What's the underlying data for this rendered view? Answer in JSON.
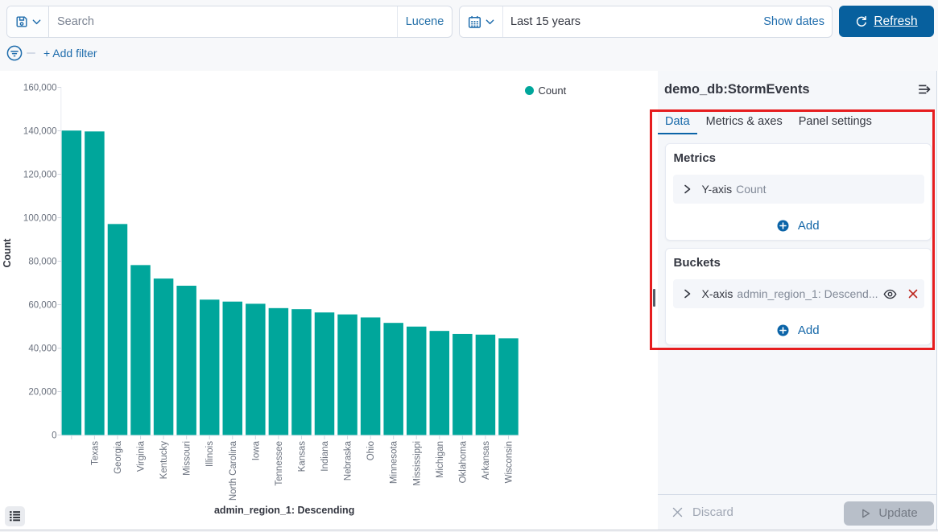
{
  "query_bar": {
    "search_placeholder": "Search",
    "language": "Lucene",
    "time_value": "Last 15 years",
    "show_dates_label": "Show dates",
    "refresh_label": "Refresh"
  },
  "filter_bar": {
    "add_filter_label": "+ Add filter"
  },
  "chart_data": {
    "type": "bar",
    "categories": [
      "",
      "Texas",
      "Georgia",
      "Virginia",
      "Kentucky",
      "Missouri",
      "Illinois",
      "North Carolina",
      "Iowa",
      "Tennessee",
      "Kansas",
      "Indiana",
      "Nebraska",
      "Ohio",
      "Minnesota",
      "Mississippi",
      "Michigan",
      "Oklahoma",
      "Arkansas",
      "Wisconsin"
    ],
    "values": [
      140100,
      139700,
      97100,
      78200,
      72000,
      68700,
      62300,
      61400,
      60400,
      58400,
      57900,
      56400,
      55500,
      54100,
      51600,
      49900,
      47900,
      46500,
      46200,
      44500
    ],
    "title": "",
    "xlabel": "admin_region_1: Descending",
    "ylabel": "Count",
    "ylim": [
      0,
      160000
    ],
    "ytick_step": 20000,
    "grid": false,
    "legend_position": "top-right",
    "legend": [
      {
        "label": "Count",
        "color": "#00A69B"
      }
    ],
    "bar_color": "#00A69B"
  },
  "sidebar": {
    "title": "demo_db:StormEvents",
    "tabs": [
      {
        "label": "Data",
        "active": true
      },
      {
        "label": "Metrics & axes",
        "active": false
      },
      {
        "label": "Panel settings",
        "active": false
      }
    ],
    "metrics_section": {
      "heading": "Metrics",
      "row": {
        "label": "Y-axis",
        "value": "Count"
      },
      "add_label": "Add"
    },
    "buckets_section": {
      "heading": "Buckets",
      "row": {
        "label": "X-axis",
        "value": "admin_region_1: Descend..."
      },
      "add_label": "Add"
    },
    "footer": {
      "discard_label": "Discard",
      "update_label": "Update"
    }
  },
  "annotation": {
    "color": "#e61d1f"
  },
  "colors": {
    "accent_blue": "#1e6cac",
    "primary_button": "#07609e",
    "bar_teal": "#00A69B",
    "text_dark": "#343741",
    "text_subdued": "#818997",
    "panel_bg": "#f5f7fa",
    "danger_red": "#bd271e"
  }
}
